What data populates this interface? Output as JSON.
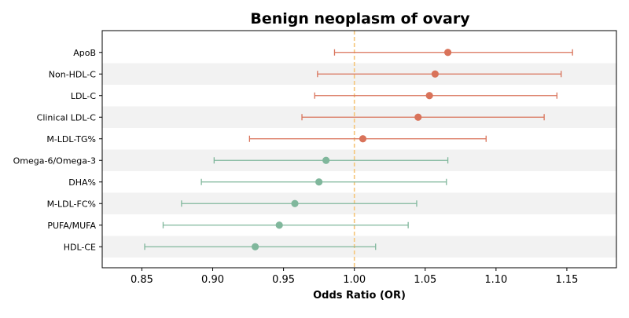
{
  "chart_data": {
    "type": "forest",
    "title": "Benign neoplasm of ovary",
    "xlabel": "Odds Ratio (OR)",
    "xlim": [
      0.822,
      1.185
    ],
    "xticks": [
      0.85,
      0.9,
      0.95,
      1.0,
      1.05,
      1.1,
      1.15
    ],
    "xtick_labels": [
      "0.85",
      "0.90",
      "0.95",
      "1.00",
      "1.05",
      "1.10",
      "1.15"
    ],
    "reference_line": 1.0,
    "reference_color": "#f5c57a",
    "row_stripe_color": "#f2f2f2",
    "colors": {
      "positive": "#d9735a",
      "negative": "#80b79c"
    },
    "rows": [
      {
        "label": "ApoB",
        "or": 1.066,
        "lower": 0.986,
        "upper": 1.154,
        "color": "positive"
      },
      {
        "label": "Non-HDL-C",
        "or": 1.057,
        "lower": 0.974,
        "upper": 1.146,
        "color": "positive"
      },
      {
        "label": "LDL-C",
        "or": 1.053,
        "lower": 0.972,
        "upper": 1.143,
        "color": "positive"
      },
      {
        "label": "Clinical LDL-C",
        "or": 1.045,
        "lower": 0.963,
        "upper": 1.134,
        "color": "positive"
      },
      {
        "label": "M-LDL-TG%",
        "or": 1.006,
        "lower": 0.926,
        "upper": 1.093,
        "color": "positive"
      },
      {
        "label": "Omega-6/Omega-3",
        "or": 0.98,
        "lower": 0.901,
        "upper": 1.066,
        "color": "negative"
      },
      {
        "label": "DHA%",
        "or": 0.975,
        "lower": 0.892,
        "upper": 1.065,
        "color": "negative"
      },
      {
        "label": "M-LDL-FC%",
        "or": 0.958,
        "lower": 0.878,
        "upper": 1.044,
        "color": "negative"
      },
      {
        "label": "PUFA/MUFA",
        "or": 0.947,
        "lower": 0.865,
        "upper": 1.038,
        "color": "negative"
      },
      {
        "label": "HDL-CE",
        "or": 0.93,
        "lower": 0.852,
        "upper": 1.015,
        "color": "negative"
      }
    ]
  }
}
